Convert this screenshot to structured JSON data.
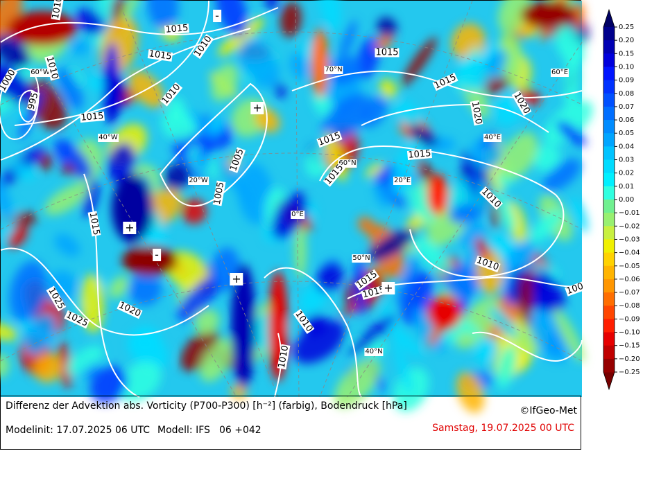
{
  "map": {
    "graticule_labels": [
      "60°W",
      "40°W",
      "20°W",
      "0°E",
      "20°E",
      "40°E",
      "60°E",
      "70°N",
      "60°N",
      "50°N",
      "40°N"
    ],
    "isobar_labels": [
      "1015",
      "1015",
      "1010",
      "1010",
      "1015",
      "1010",
      "1000",
      "995",
      "1005",
      "1005",
      "1015",
      "1015",
      "1015",
      "1015",
      "1015",
      "1020",
      "1020",
      "1015",
      "1010",
      "1010",
      "1015",
      "1015",
      "1010",
      "1010",
      "1025",
      "1020",
      "1025",
      "1010",
      "100"
    ],
    "markers": [
      "-",
      "+",
      "+",
      "-",
      "+",
      "+"
    ]
  },
  "colorbar": {
    "labels": [
      "0.25",
      "0.20",
      "0.15",
      "0.10",
      "0.09",
      "0.08",
      "0.07",
      "0.06",
      "0.05",
      "0.04",
      "0.03",
      "0.02",
      "0.01",
      "0.00",
      "−0.01",
      "−0.02",
      "−0.03",
      "−0.04",
      "−0.05",
      "−0.06",
      "−0.07",
      "−0.08",
      "−0.09",
      "−0.10",
      "−0.15",
      "−0.20",
      "−0.25"
    ],
    "colors": [
      "#00008c",
      "#0000b4",
      "#0000dc",
      "#0014ff",
      "#0032ff",
      "#0050ff",
      "#006eff",
      "#008cff",
      "#00a5ff",
      "#00c3ff",
      "#00dcff",
      "#00f0ff",
      "#30ffe0",
      "#70f090",
      "#98f070",
      "#c8f040",
      "#f0f000",
      "#ffd200",
      "#ffb400",
      "#ff9600",
      "#ff6e00",
      "#ff4600",
      "#ff1e00",
      "#e60000",
      "#c00000",
      "#960000"
    ],
    "extend_colors": [
      "#000064",
      "#780000"
    ]
  },
  "caption": {
    "title": "Differenz der Advektion abs. Vorticity (P700-P300) [h⁻²] (farbig), Bodendruck [hPa]",
    "copyright": "©IfGeo-Met",
    "init": "Modelinit: 17.07.2025 06 UTC",
    "model": "Modell: IFS",
    "run": "06 +042",
    "valid": "Samstag, 19.07.2025 00 UTC"
  }
}
